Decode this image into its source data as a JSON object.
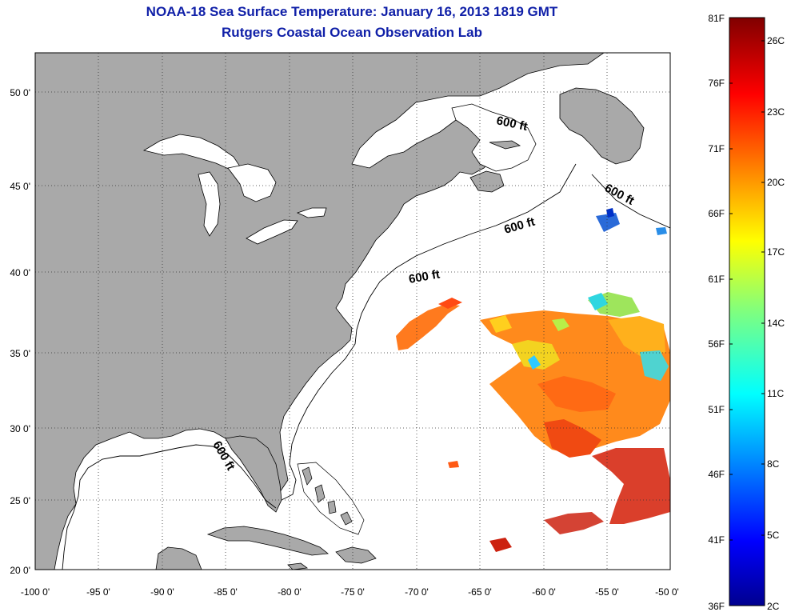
{
  "header": {
    "title": "NOAA-18 Sea Surface Temperature:  January 16, 2013 1819 GMT",
    "subtitle": "Rutgers Coastal Ocean Observation Lab"
  },
  "map": {
    "lat_ticks": [
      "50 0'",
      "45 0'",
      "40 0'",
      "35 0'",
      "30 0'",
      "25 0'",
      "20 0'"
    ],
    "lon_ticks": [
      "-100 0'",
      "-95 0'",
      "-90 0'",
      "-85 0'",
      "-80 0'",
      "-75 0'",
      "-70 0'",
      "-65 0'",
      "-60 0'",
      "-55 0'",
      "-50 0'"
    ],
    "contour_label": "600 ft",
    "land_color": "#a9a9a9",
    "ocean_color": "#ffffff",
    "grid_style": "dotted"
  },
  "colorbar": {
    "fahrenheit_ticks": [
      "81F",
      "76F",
      "71F",
      "66F",
      "61F",
      "56F",
      "51F",
      "46F",
      "41F",
      "36F"
    ],
    "celsius_ticks": [
      "26C",
      "23C",
      "20C",
      "17C",
      "14C",
      "11C",
      "8C",
      "5C",
      "2C"
    ],
    "colormap": "jet"
  }
}
